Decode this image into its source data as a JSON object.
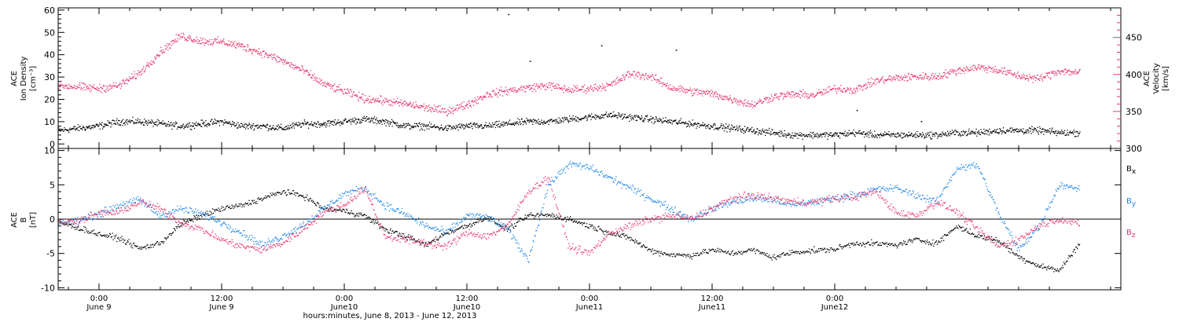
{
  "colors": {
    "black": "#000000",
    "pink": "#e8376b",
    "blue": "#1f87e6"
  },
  "chart_data": [
    {
      "type": "scatter",
      "panel": "top",
      "x_unit": "hours since 2013-06-08 00:00",
      "xlim": [
        20,
        124
      ],
      "ylim_left": [
        -2,
        61
      ],
      "ylim_right": [
        300,
        490
      ],
      "y_ticks_left": [
        "0",
        "10",
        "20",
        "30",
        "40",
        "50",
        "60"
      ],
      "y_ticks_right": [
        "300",
        "350",
        "400",
        "450"
      ],
      "ylabel_left": [
        "ACE",
        "Ion Density",
        "[cm⁻³]"
      ],
      "ylabel_right": [
        "ACE",
        "Velocity",
        "[km/s]"
      ],
      "series": [
        {
          "key": "density",
          "axis": "left",
          "color": "#000000",
          "spread": 2.2,
          "x": [
            20,
            22,
            24,
            26,
            28,
            30,
            32,
            34,
            36,
            38,
            40,
            42,
            44,
            46,
            48,
            50,
            52,
            54,
            56,
            58,
            60,
            62,
            64,
            66,
            68,
            70,
            72,
            74,
            76,
            78,
            80,
            82,
            84,
            86,
            88,
            90,
            92,
            94,
            96,
            98,
            100,
            102,
            104,
            106,
            108,
            110,
            112,
            114,
            116,
            118,
            120
          ],
          "y": [
            6,
            7,
            8,
            10,
            10,
            9,
            8,
            9,
            10,
            8,
            8,
            7,
            9,
            9,
            10,
            11,
            10,
            8,
            8,
            7,
            8,
            8,
            9,
            10,
            10,
            11,
            12,
            13,
            12,
            11,
            10,
            9,
            8,
            7,
            6,
            5,
            4,
            4,
            4,
            5,
            4,
            4,
            4,
            4,
            5,
            5,
            6,
            6,
            6,
            5,
            5
          ]
        },
        {
          "key": "velocity",
          "axis": "right",
          "color": "#e8376b",
          "spread": 8,
          "x": [
            20,
            22,
            24,
            26,
            28,
            30,
            32,
            34,
            36,
            38,
            40,
            42,
            44,
            46,
            48,
            50,
            52,
            54,
            56,
            58,
            60,
            62,
            64,
            66,
            68,
            70,
            72,
            74,
            76,
            78,
            80,
            82,
            84,
            86,
            88,
            90,
            92,
            94,
            96,
            98,
            100,
            102,
            104,
            106,
            108,
            110,
            112,
            114,
            116,
            118,
            120
          ],
          "y": [
            385,
            383,
            381,
            385,
            402,
            430,
            452,
            445,
            444,
            438,
            429,
            418,
            405,
            387,
            377,
            367,
            364,
            360,
            355,
            350,
            359,
            373,
            378,
            382,
            385,
            379,
            381,
            385,
            401,
            397,
            382,
            377,
            374,
            366,
            359,
            370,
            373,
            372,
            381,
            379,
            391,
            395,
            397,
            397,
            405,
            410,
            406,
            398,
            394,
            405,
            402
          ]
        }
      ],
      "outliers": {
        "x": [
          64.1,
          66.2,
          73.2,
          80.5,
          98.2,
          104.5
        ],
        "y": [
          58,
          37,
          44,
          42,
          15,
          10
        ]
      }
    },
    {
      "type": "scatter",
      "panel": "bottom",
      "x_unit": "hours since 2013-06-08 00:00",
      "xlim": [
        20,
        124
      ],
      "ylim": [
        -10.3,
        10.3
      ],
      "y_ticks": [
        "-10",
        "-5",
        "0",
        "5",
        "10"
      ],
      "ylabel": [
        "ACE",
        "B",
        "[nT]"
      ],
      "legend": [
        {
          "base": "B",
          "sub": "x",
          "color": "#000000"
        },
        {
          "base": "B",
          "sub": "y",
          "color": "#1f87e6"
        },
        {
          "base": "B",
          "sub": "z",
          "color": "#e8376b"
        }
      ],
      "series": [
        {
          "key": "Bx",
          "color": "#000000",
          "spread": 0.6,
          "x": [
            20,
            22,
            24,
            26,
            28,
            30,
            32,
            34,
            36,
            38,
            40,
            42,
            44,
            46,
            48,
            50,
            52,
            54,
            56,
            58,
            60,
            62,
            64,
            66,
            68,
            70,
            72,
            74,
            76,
            78,
            80,
            82,
            84,
            86,
            88,
            90,
            92,
            94,
            96,
            98,
            100,
            102,
            104,
            106,
            108,
            110,
            112,
            114,
            116,
            118,
            120
          ],
          "y": [
            -0.4,
            -1.3,
            -2.2,
            -2.8,
            -4.3,
            -3.5,
            -0.8,
            0.5,
            1.5,
            2,
            3,
            4,
            3.4,
            1.5,
            1.2,
            0.5,
            -1.5,
            -2.5,
            -3.8,
            -2,
            -1,
            0.3,
            -1.5,
            0.5,
            0.6,
            0,
            -1,
            -2,
            -2.8,
            -4.6,
            -5.2,
            -5.3,
            -4.5,
            -5,
            -4.5,
            -5.6,
            -4.8,
            -4.6,
            -4.4,
            -3.5,
            -3.6,
            -3.8,
            -3,
            -3.5,
            -1,
            -2.5,
            -3.1,
            -5.5,
            -6.8,
            -7.5,
            -3.5
          ]
        },
        {
          "key": "By",
          "color": "#1f87e6",
          "spread": 0.8,
          "x": [
            20,
            22,
            24,
            26,
            28,
            30,
            32,
            34,
            36,
            38,
            40,
            42,
            44,
            46,
            48,
            50,
            52,
            54,
            56,
            58,
            60,
            62,
            64,
            66,
            68,
            70,
            72,
            74,
            76,
            78,
            80,
            82,
            84,
            86,
            88,
            90,
            92,
            94,
            96,
            98,
            100,
            102,
            104,
            106,
            108,
            110,
            112,
            114,
            116,
            118,
            120
          ],
          "y": [
            -0.5,
            -0.3,
            0.8,
            2,
            2.8,
            0.5,
            1.5,
            0.8,
            -0.5,
            -2,
            -3.8,
            -2.5,
            -0.8,
            1.5,
            3.7,
            4.5,
            2,
            0.7,
            -1,
            -2,
            0.5,
            0.3,
            -1.5,
            -6,
            5,
            8,
            7.5,
            6,
            4.5,
            3,
            1.5,
            0,
            1.5,
            2.5,
            3,
            2.8,
            2,
            2.5,
            3,
            3.5,
            4.3,
            4.5,
            3.5,
            2.5,
            7.5,
            7.8,
            1,
            -4.5,
            -1,
            5,
            4.5
          ]
        },
        {
          "key": "Bz",
          "color": "#e8376b",
          "spread": 0.8,
          "x": [
            20,
            22,
            24,
            26,
            28,
            30,
            32,
            34,
            36,
            38,
            40,
            42,
            44,
            46,
            48,
            50,
            52,
            54,
            56,
            58,
            60,
            62,
            64,
            66,
            68,
            70,
            72,
            74,
            76,
            78,
            80,
            82,
            84,
            86,
            88,
            90,
            92,
            94,
            96,
            98,
            100,
            102,
            104,
            106,
            108,
            110,
            112,
            114,
            116,
            118,
            120
          ],
          "y": [
            -0.5,
            -0.2,
            0.8,
            1,
            2.5,
            1.5,
            -0.5,
            -1.5,
            -3,
            -4,
            -4.5,
            -3.5,
            -1.5,
            1,
            2,
            4.5,
            -2.5,
            -3,
            -3.5,
            -4,
            -2,
            -2.5,
            -1,
            4,
            6,
            -4,
            -5,
            -2,
            -1,
            0,
            0.5,
            0,
            1.5,
            3,
            3.5,
            3,
            2.5,
            2.5,
            3,
            3.2,
            4,
            1,
            0.5,
            2.5,
            1,
            -1.5,
            -4,
            -3,
            -1,
            0,
            -0.8
          ]
        }
      ]
    }
  ],
  "x_ticks": [
    {
      "time": "0:00",
      "date": "June 9"
    },
    {
      "time": "12:00",
      "date": "June 9"
    },
    {
      "time": "0:00",
      "date": "June10"
    },
    {
      "time": "12:00",
      "date": "June10"
    },
    {
      "time": "0:00",
      "date": "June11"
    },
    {
      "time": "12:00",
      "date": "June11"
    },
    {
      "time": "0:00",
      "date": "June12"
    }
  ],
  "x_tick_hours": [
    24,
    36,
    48,
    60,
    72,
    84,
    96
  ],
  "xlabel": "hours:minutes, June  8, 2013 - June 12, 2013"
}
